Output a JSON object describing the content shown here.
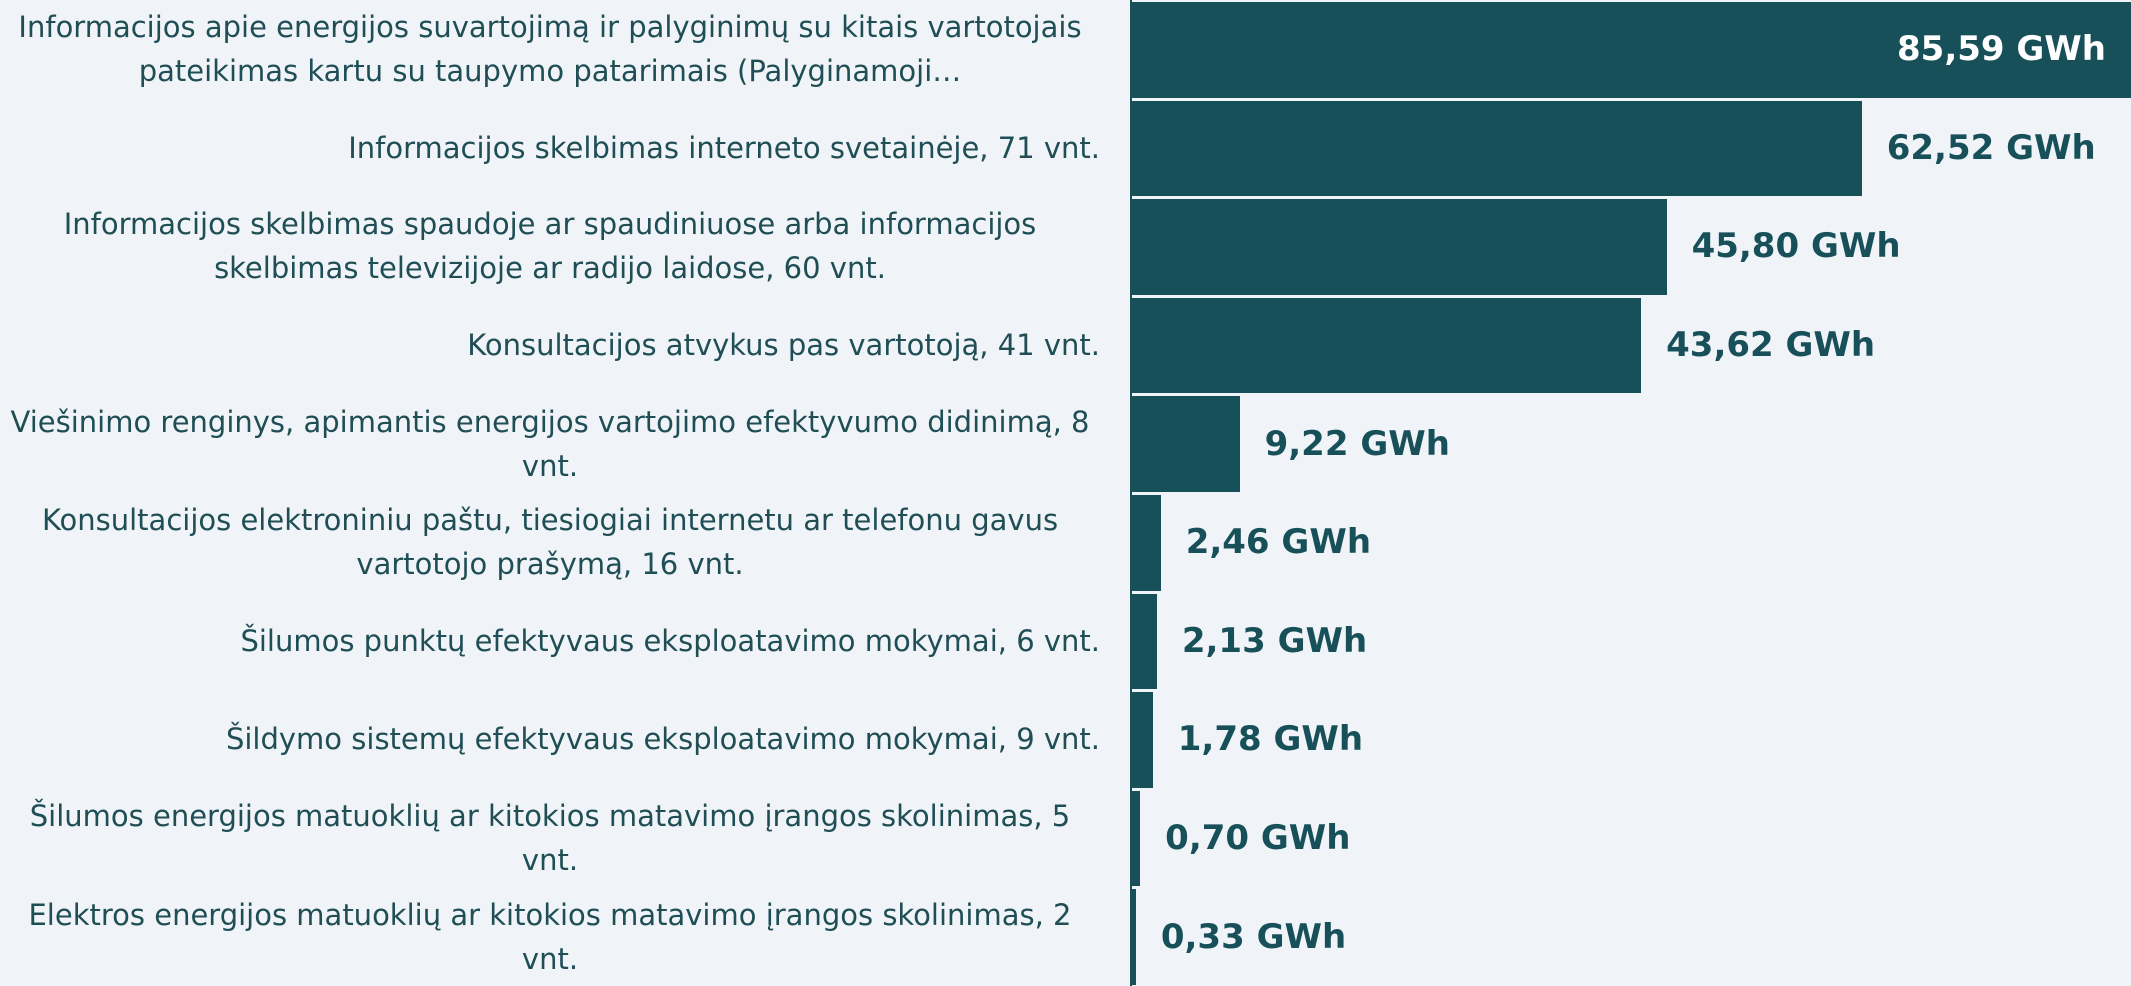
{
  "chart_data": {
    "type": "bar",
    "orientation": "horizontal",
    "color": "#18505a",
    "categories": [
      "Informacijos apie energijos suvartojimą ir palyginimų su kitais vartotojais pateikimas kartu su taupymo patarimais (Palyginamoji…",
      "Informacijos skelbimas interneto svetainėje, 71 vnt.",
      "Informacijos skelbimas spaudoje ar spaudiniuose arba informacijos skelbimas televizijoje ar radijo laidose, 60 vnt.",
      "Konsultacijos atvykus pas vartotoją, 41 vnt.",
      "Viešinimo renginys, apimantis energijos vartojimo efektyvumo didinimą, 8 vnt.",
      "Konsultacijos elektroniniu paštu, tiesiogiai internetu ar telefonu gavus vartotojo prašymą, 16 vnt.",
      "Šilumos punktų efektyvaus eksploatavimo mokymai, 6 vnt.",
      "Šildymo sistemų efektyvaus eksploatavimo mokymai, 9 vnt.",
      "Šilumos energijos matuoklių ar kitokios matavimo įrangos skolinimas, 5 vnt.",
      "Elektros energijos matuoklių ar kitokios matavimo įrangos skolinimas, 2 vnt."
    ],
    "values": [
      85.59,
      62.52,
      45.8,
      43.62,
      9.22,
      2.46,
      2.13,
      1.78,
      0.7,
      0.33
    ],
    "value_labels": [
      "85,59 GWh",
      "62,52 GWh",
      "45,80 GWh",
      "43,62 GWh",
      "9,22 GWh",
      "2,46 GWh",
      "2,13 GWh",
      "1,78 GWh",
      "0,70 GWh",
      "0,33 GWh"
    ]
  }
}
